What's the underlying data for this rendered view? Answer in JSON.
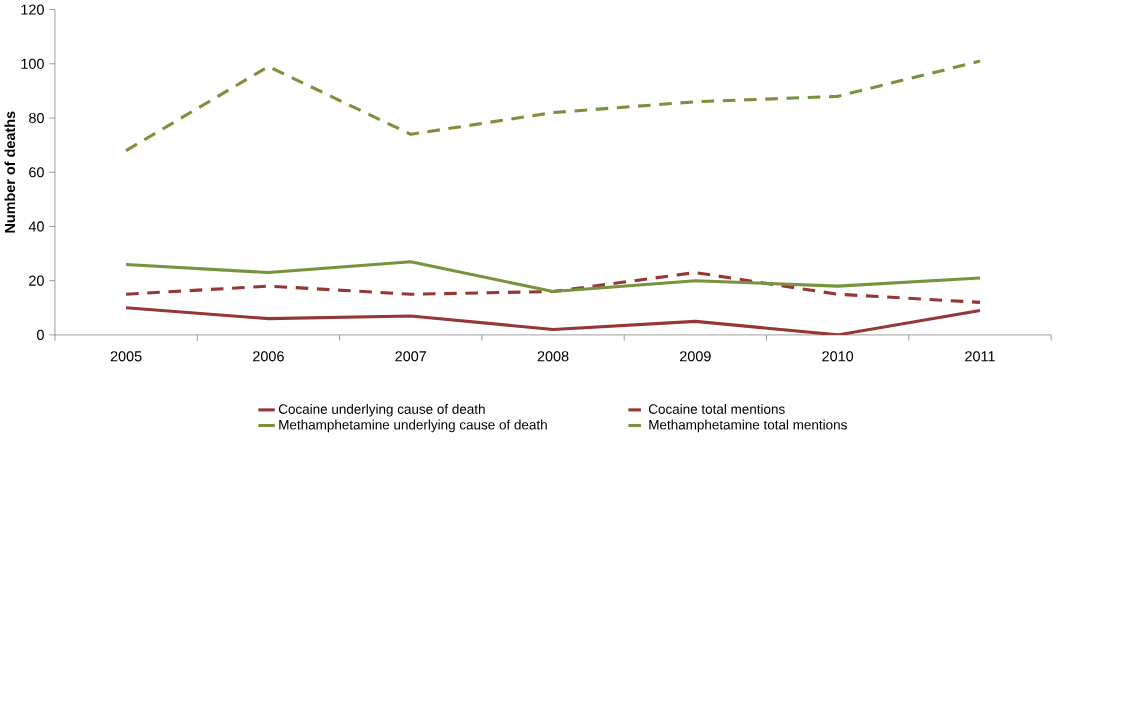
{
  "chart_data": {
    "type": "line",
    "ylabel": "Number of deaths",
    "categories": [
      "2005",
      "2006",
      "2007",
      "2008",
      "2009",
      "2010",
      "2011"
    ],
    "series": [
      {
        "name": "Cocaine underlying cause of death",
        "color": "#953735",
        "line_style": "solid",
        "values": [
          10,
          6,
          7,
          2,
          5,
          0,
          9
        ]
      },
      {
        "name": "Cocaine total mentions",
        "color": "#953735",
        "line_style": "dashed",
        "values": [
          15,
          18,
          15,
          16,
          23,
          15,
          12
        ]
      },
      {
        "name": "Methamphetamine underlying cause of death",
        "color": "#77933c",
        "line_style": "solid",
        "values": [
          26,
          23,
          27,
          16,
          20,
          18,
          21
        ]
      },
      {
        "name": "Methamphetamine total mentions",
        "color": "#77933c",
        "line_style": "dashed",
        "values": [
          68,
          99,
          74,
          82,
          86,
          88,
          101
        ]
      }
    ],
    "ylim": [
      0,
      120
    ],
    "yticks": [
      0,
      20,
      40,
      60,
      80,
      100,
      120
    ],
    "grid": false,
    "legend": "bottom",
    "marker": "none"
  }
}
